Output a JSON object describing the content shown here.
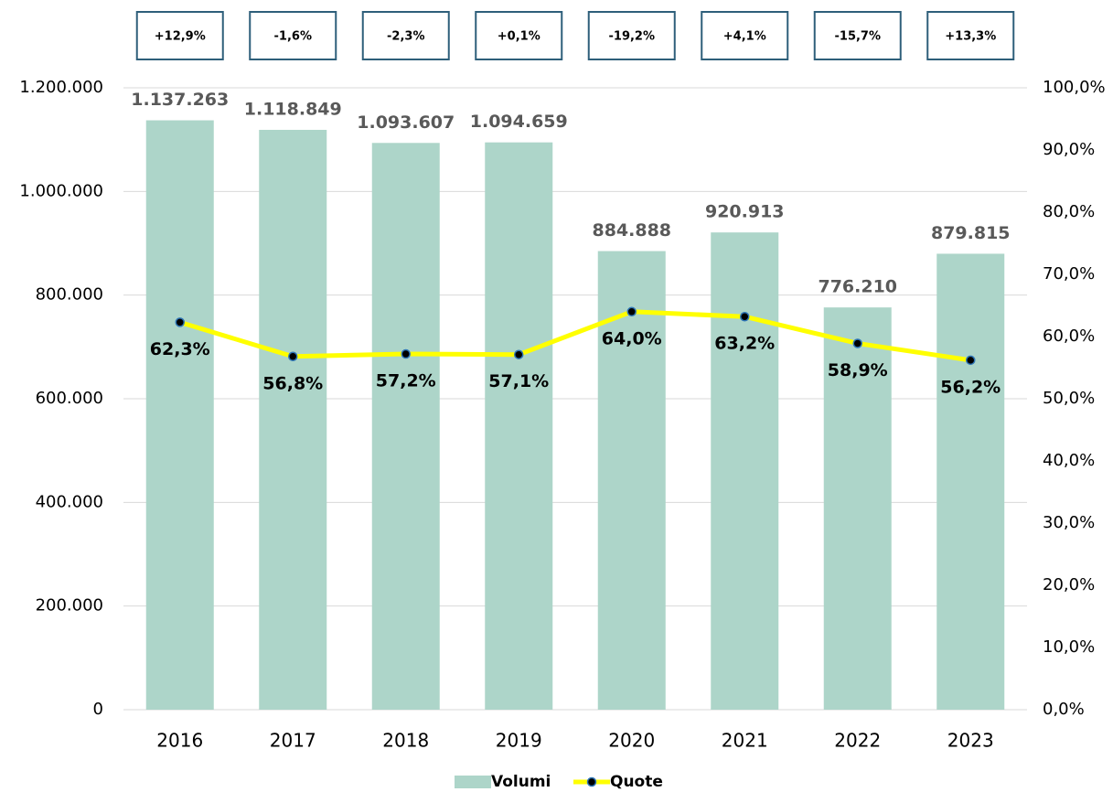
{
  "chart_data": {
    "type": "combo",
    "annotations": [
      "+12,9%",
      "-1,6%",
      "-2,3%",
      "+0,1%",
      "-19,2%",
      "+4,1%",
      "-15,7%",
      "+13,3%"
    ],
    "categories": [
      "2016",
      "2017",
      "2018",
      "2019",
      "2020",
      "2021",
      "2022",
      "2023"
    ],
    "series": [
      {
        "name": "Volumi",
        "type": "bar",
        "color": "#add5c9",
        "values": [
          1137263,
          1118849,
          1093607,
          1094659,
          884888,
          920913,
          776210,
          879815
        ],
        "value_labels": [
          "1.137.263",
          "1.118.849",
          "1.093.607",
          "1.094.659",
          "884.888",
          "920.913",
          "776.210",
          "879.815"
        ]
      },
      {
        "name": "Quote",
        "type": "line",
        "axis": "y2",
        "color": "#ffff00",
        "values": [
          62.3,
          56.8,
          57.2,
          57.1,
          64.0,
          63.2,
          58.9,
          56.2
        ],
        "value_labels": [
          "62,3%",
          "56,8%",
          "57,2%",
          "57,1%",
          "64,0%",
          "63,2%",
          "58,9%",
          "56,2%"
        ]
      }
    ],
    "ylim": [
      0,
      1200000
    ],
    "yticks": [
      0,
      {
        "value": 200000,
        "label": "200.000"
      },
      {
        "value": 400000,
        "label": "400.000"
      },
      {
        "value": 600000,
        "label": "600.000"
      },
      {
        "value": 800000,
        "label": "800.000"
      },
      {
        "value": 1000000,
        "label": "1.000.000"
      },
      {
        "value": 1200000,
        "label": "1.200.000"
      }
    ],
    "y2lim": [
      0,
      100
    ],
    "y2ticks": [
      {
        "value": 0,
        "label": "0,0%"
      },
      {
        "value": 10,
        "label": "10,0%"
      },
      {
        "value": 20,
        "label": "20,0%"
      },
      {
        "value": 30,
        "label": "30,0%"
      },
      {
        "value": 40,
        "label": "40,0%"
      },
      {
        "value": 50,
        "label": "50,0%"
      },
      {
        "value": 60,
        "label": "60,0%"
      },
      {
        "value": 70,
        "label": "70,0%"
      },
      {
        "value": 80,
        "label": "80,0%"
      },
      {
        "value": 90,
        "label": "90,0%"
      },
      {
        "value": 100,
        "label": "100,0%"
      }
    ],
    "grid": true,
    "legend": "bottom"
  }
}
